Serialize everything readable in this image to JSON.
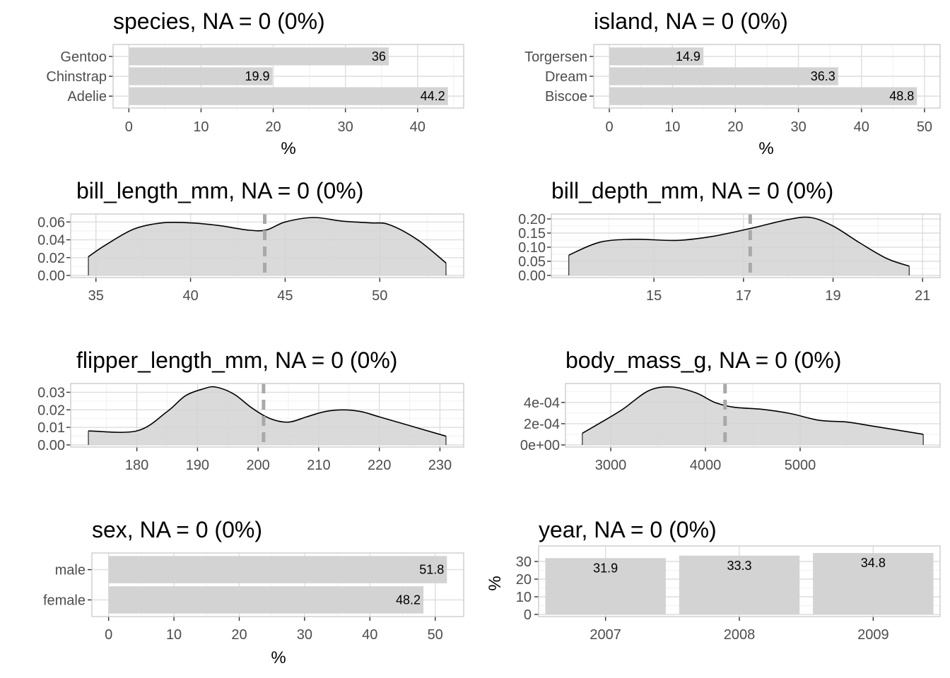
{
  "colors": {
    "fill": "#d3d3d3",
    "mean_line": "#a9a9a9",
    "curve": "#000000"
  },
  "chart_data": [
    {
      "type": "bar",
      "orientation": "horizontal",
      "title": "species, NA = 0 (0%)",
      "xlabel": "%",
      "categories": [
        "Adelie",
        "Chinstrap",
        "Gentoo"
      ],
      "values": [
        44.2,
        19.9,
        36
      ],
      "value_labels": [
        "44.2",
        "19.9",
        "36"
      ],
      "xlim": [
        0,
        44.2
      ],
      "xticks": [
        0,
        10,
        20,
        30,
        40
      ],
      "xtick_labels": [
        "0",
        "10",
        "20",
        "30",
        "40"
      ]
    },
    {
      "type": "bar",
      "orientation": "horizontal",
      "title": "island, NA = 0 (0%)",
      "xlabel": "%",
      "categories": [
        "Biscoe",
        "Dream",
        "Torgersen"
      ],
      "values": [
        48.8,
        36.3,
        14.9
      ],
      "value_labels": [
        "48.8",
        "36.3",
        "14.9"
      ],
      "xlim": [
        0,
        50
      ],
      "xticks": [
        0,
        10,
        20,
        30,
        40,
        50
      ],
      "xtick_labels": [
        "0",
        "10",
        "20",
        "30",
        "40",
        "50"
      ]
    },
    {
      "type": "area",
      "title": "bill_length_mm, NA = 0 (0%)",
      "x": [
        34.6,
        35.5,
        37,
        38.5,
        40,
        41.5,
        43,
        44,
        45,
        46.5,
        48,
        49.5,
        50.5,
        52,
        53.5
      ],
      "y": [
        0.021,
        0.034,
        0.052,
        0.059,
        0.059,
        0.056,
        0.051,
        0.051,
        0.06,
        0.065,
        0.061,
        0.059,
        0.057,
        0.04,
        0.014
      ],
      "mean": 43.92,
      "xlim": [
        34.6,
        53.5
      ],
      "ylim": [
        0,
        0.065
      ],
      "xticks": [
        35,
        40,
        45,
        50
      ],
      "xtick_labels": [
        "35",
        "40",
        "45",
        "50"
      ],
      "yticks": [
        0,
        0.02,
        0.04,
        0.06
      ],
      "ytick_labels": [
        "0.00",
        "0.02",
        "0.04",
        "0.06"
      ]
    },
    {
      "type": "area",
      "title": "bill_depth_mm, NA = 0 (0%)",
      "x": [
        13.1,
        13.8,
        14.6,
        15.5,
        16.3,
        17.2,
        18,
        18.5,
        19,
        19.6,
        20.2,
        20.7
      ],
      "y": [
        0.072,
        0.118,
        0.128,
        0.124,
        0.138,
        0.168,
        0.198,
        0.205,
        0.175,
        0.115,
        0.06,
        0.033
      ],
      "mean": 17.15,
      "xlim": [
        13.1,
        21
      ],
      "ylim": [
        0,
        0.205
      ],
      "xticks": [
        15,
        17,
        19,
        21
      ],
      "xtick_labels": [
        "15",
        "17",
        "19",
        "21"
      ],
      "yticks": [
        0,
        0.05,
        0.1,
        0.15,
        0.2
      ],
      "ytick_labels": [
        "0.00",
        "0.05",
        "0.10",
        "0.15",
        "0.20"
      ]
    },
    {
      "type": "area",
      "title": "flipper_length_mm, NA = 0 (0%)",
      "x": [
        172,
        180,
        185,
        188,
        191,
        193,
        196,
        199,
        202,
        205,
        208,
        211,
        214,
        217,
        220,
        225,
        231
      ],
      "y": [
        0.008,
        0.008,
        0.019,
        0.028,
        0.032,
        0.033,
        0.029,
        0.021,
        0.015,
        0.013,
        0.016,
        0.019,
        0.02,
        0.019,
        0.016,
        0.011,
        0.005
      ],
      "mean": 200.9,
      "xlim": [
        172,
        231
      ],
      "ylim": [
        0,
        0.033
      ],
      "xticks": [
        180,
        190,
        200,
        210,
        220,
        230
      ],
      "xtick_labels": [
        "180",
        "190",
        "200",
        "210",
        "220",
        "230"
      ],
      "yticks": [
        0,
        0.01,
        0.02,
        0.03
      ],
      "ytick_labels": [
        "0.00",
        "0.01",
        "0.02",
        "0.03"
      ]
    },
    {
      "type": "area",
      "title": "body_mass_g, NA = 0 (0%)",
      "x": [
        2700,
        3100,
        3400,
        3650,
        3900,
        4100,
        4300,
        4600,
        4900,
        5200,
        5500,
        5750,
        6300
      ],
      "y": [
        0.00011,
        0.00032,
        0.00051,
        0.000545,
        0.00049,
        0.0004,
        0.000355,
        0.000335,
        0.000295,
        0.000232,
        0.000215,
        0.00018,
        0.0001
      ],
      "mean": 4207,
      "xlim": [
        2700,
        6300
      ],
      "ylim": [
        0,
        0.000545
      ],
      "xticks": [
        3000,
        4000,
        5000
      ],
      "xtick_labels": [
        "3000",
        "4000",
        "5000"
      ],
      "yticks": [
        0,
        0.0002,
        0.0004
      ],
      "ytick_labels": [
        "0e+00",
        "2e-04",
        "4e-04"
      ]
    },
    {
      "type": "bar",
      "orientation": "horizontal",
      "title": "sex, NA = 0 (0%)",
      "xlabel": "%",
      "categories": [
        "female",
        "male"
      ],
      "values": [
        48.2,
        51.8
      ],
      "value_labels": [
        "48.2",
        "51.8"
      ],
      "xlim": [
        0,
        51.8
      ],
      "xticks": [
        0,
        10,
        20,
        30,
        40,
        50
      ],
      "xtick_labels": [
        "0",
        "10",
        "20",
        "30",
        "40",
        "50"
      ]
    },
    {
      "type": "bar",
      "orientation": "vertical",
      "title": "year, NA = 0 (0%)",
      "ylabel": "%",
      "categories": [
        "2007",
        "2008",
        "2009"
      ],
      "values": [
        31.9,
        33.3,
        34.8
      ],
      "value_labels": [
        "31.9",
        "33.3",
        "34.8"
      ],
      "ylim": [
        0,
        34.8
      ],
      "yticks": [
        0,
        10,
        20,
        30
      ],
      "ytick_labels": [
        "0",
        "10",
        "20",
        "30"
      ]
    }
  ]
}
